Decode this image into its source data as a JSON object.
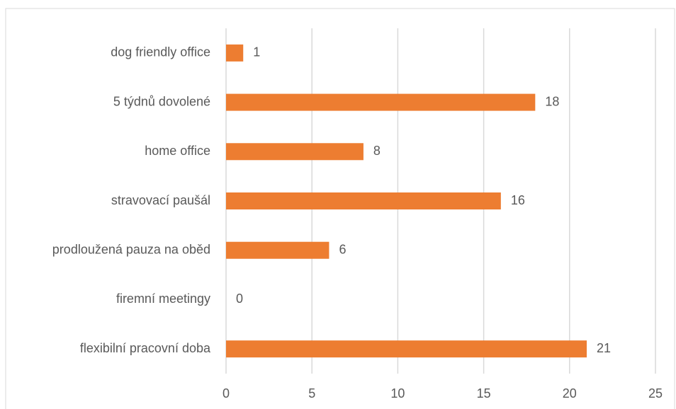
{
  "chart_data": {
    "type": "bar",
    "orientation": "horizontal",
    "categories": [
      "dog friendly office",
      "5 týdnů dovolené",
      "home office",
      "stravovací paušál",
      "prodloužená pauza na oběd",
      "firemní meetingy",
      "flexibilní pracovní doba"
    ],
    "values": [
      1,
      18,
      8,
      16,
      6,
      0,
      21
    ],
    "color": "#ed7d31",
    "xlim": [
      0,
      25
    ],
    "xticks": [
      0,
      5,
      10,
      15,
      20,
      25
    ],
    "grid": true
  }
}
